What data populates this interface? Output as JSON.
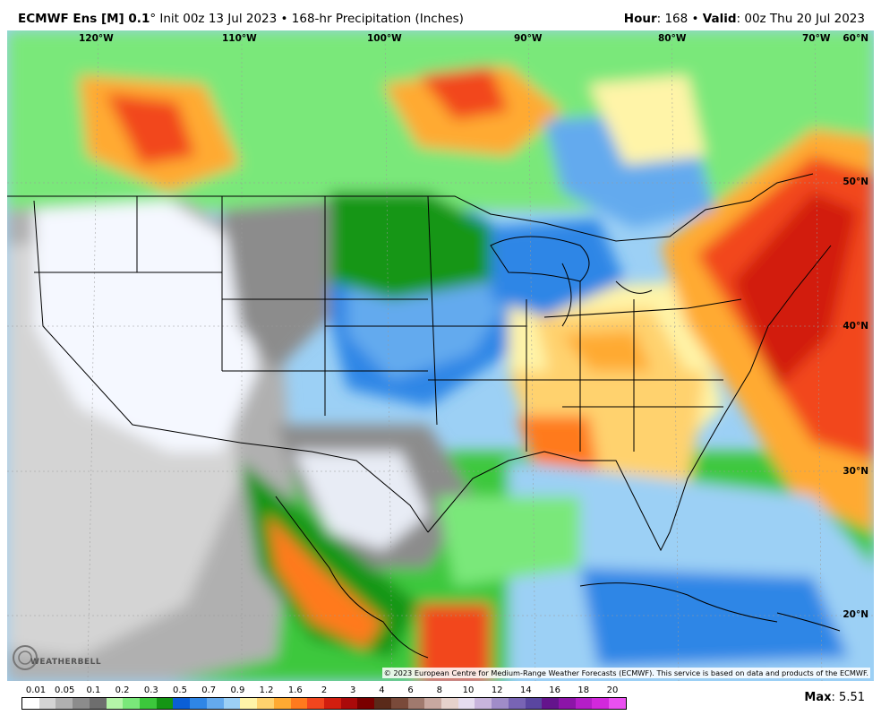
{
  "header": {
    "model": "ECMWF Ens [M] 0.1",
    "degree": "°",
    "init": " Init 00z 13 Jul 2023",
    "sep": " • ",
    "product": "168-hr Precipitation (Inches)",
    "hour_label": "Hour",
    "hour": "168",
    "valid_label": "Valid",
    "valid": "00z Thu 20 Jul 2023"
  },
  "map": {
    "lon_labels": [
      "120°W",
      "110°W",
      "100°W",
      "90°W",
      "80°W",
      "70°W"
    ],
    "lat_labels": [
      "60°N",
      "50°N",
      "40°N",
      "30°N",
      "20°N"
    ],
    "credit": "© 2023 European Centre for Medium-Range Weather Forecasts (ECMWF). This service is based on data and products of the ECMWF.",
    "logo": "WEATHERBELL"
  },
  "legend": {
    "labels": [
      "0.01",
      "0.05",
      "0.1",
      "0.2",
      "0.3",
      "0.5",
      "0.7",
      "0.9",
      "1.2",
      "1.6",
      "2",
      "3",
      "4",
      "6",
      "8",
      "10",
      "12",
      "14",
      "16",
      "18",
      "20"
    ],
    "colors": [
      "#ffffff",
      "#d4d4d4",
      "#b0b0b0",
      "#8c8c8c",
      "#6e6e6e",
      "#b4f5a8",
      "#7ae87a",
      "#3cc83c",
      "#149614",
      "#0b5fd6",
      "#2f86e6",
      "#64aaee",
      "#9cd0f5",
      "#fff4a8",
      "#ffd26e",
      "#ffaa32",
      "#ff7a1e",
      "#f2461e",
      "#d21e0f",
      "#aa0a0a",
      "#7a0000",
      "#5a2a1a",
      "#7a4a3a",
      "#a07a6e",
      "#c8a8a0",
      "#e6d2cc",
      "#e6dcef",
      "#c8b4dc",
      "#a08cc8",
      "#7864b4",
      "#5a46a0",
      "#64148c",
      "#8c14a8",
      "#b41ec8",
      "#d228dc",
      "#ea50f0"
    ]
  },
  "max": {
    "label": "Max",
    "value": ": 5.51"
  }
}
